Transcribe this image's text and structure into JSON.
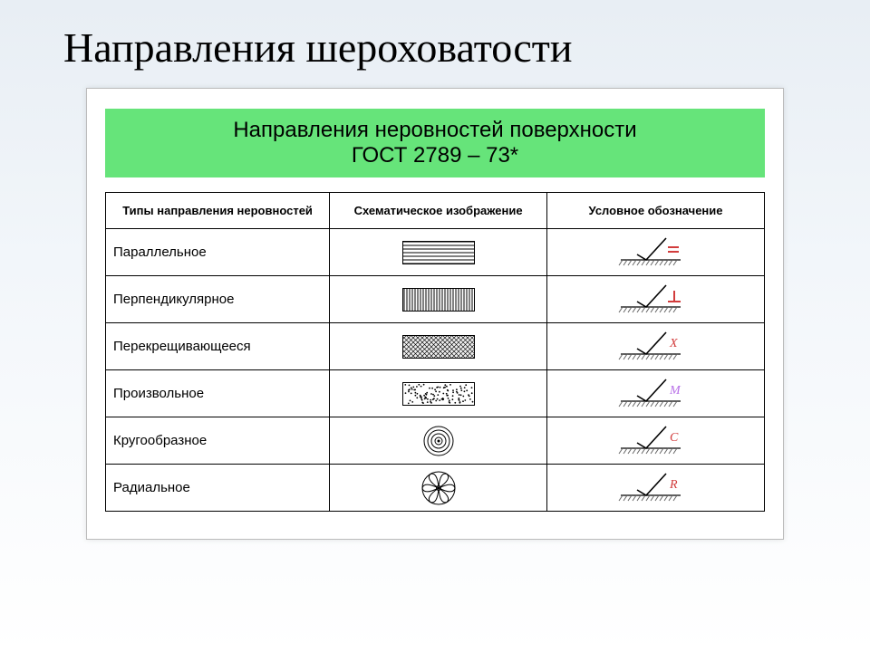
{
  "slide": {
    "title": "Направления шероховатости",
    "header_line1": "Направления неровностей поверхности",
    "header_line2": "ГОСТ 2789 – 73*",
    "header_bg": "#66e47a",
    "header_fontsize": 24,
    "title_fontsize": 46
  },
  "table": {
    "columns": [
      "Типы направления неровностей",
      "Схематическое изображение",
      "Условное обозначение"
    ],
    "rows": [
      {
        "type": "Параллельное",
        "schematic": "parallel",
        "sym_kind": "equals",
        "sym_color": "#d23c3c"
      },
      {
        "type": "Перпендикулярное",
        "schematic": "perpendicular",
        "sym_kind": "perp",
        "sym_color": "#d23c3c"
      },
      {
        "type": "Перекрещивающееся",
        "schematic": "crosshatch",
        "sym_kind": "letter",
        "sym_text": "X",
        "sym_color": "#d23c3c"
      },
      {
        "type": "Произвольное",
        "schematic": "random",
        "sym_kind": "letter",
        "sym_text": "M",
        "sym_color": "#b86fe8"
      },
      {
        "type": "Кругообразное",
        "schematic": "concentric",
        "sym_kind": "letter",
        "sym_text": "C",
        "sym_color": "#d23c3c"
      },
      {
        "type": "Радиальное",
        "schematic": "radial",
        "sym_kind": "letter",
        "sym_text": "R",
        "sym_color": "#d23c3c"
      }
    ],
    "rect_w": 80,
    "rect_h": 26,
    "stroke": "#000",
    "checkmark_color": "#000",
    "ground_hatch_color": "#666"
  }
}
